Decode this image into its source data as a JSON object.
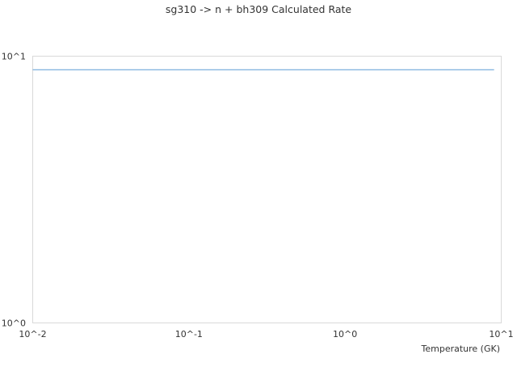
{
  "chart_data": {
    "type": "line",
    "title": "sg310 -> n + bh309 Calculated Rate",
    "xlabel": "Temperature (GK)",
    "ylabel": "",
    "xscale": "log",
    "yscale": "log",
    "xlim": [
      0.01,
      10
    ],
    "ylim": [
      1,
      10
    ],
    "x_ticks": [
      {
        "value": 0.01,
        "label": "10^-2"
      },
      {
        "value": 0.1,
        "label": "10^-1"
      },
      {
        "value": 1,
        "label": "10^0"
      },
      {
        "value": 10,
        "label": "10^1"
      }
    ],
    "y_ticks": [
      {
        "value": 1,
        "label": "10^0"
      },
      {
        "value": 10,
        "label": "10^1"
      }
    ],
    "grid": false,
    "series": [
      {
        "color": "#5b9bd5",
        "x": [
          0.01,
          0.1,
          1,
          9
        ],
        "y": [
          8.9,
          8.9,
          8.9,
          8.9
        ]
      }
    ]
  }
}
